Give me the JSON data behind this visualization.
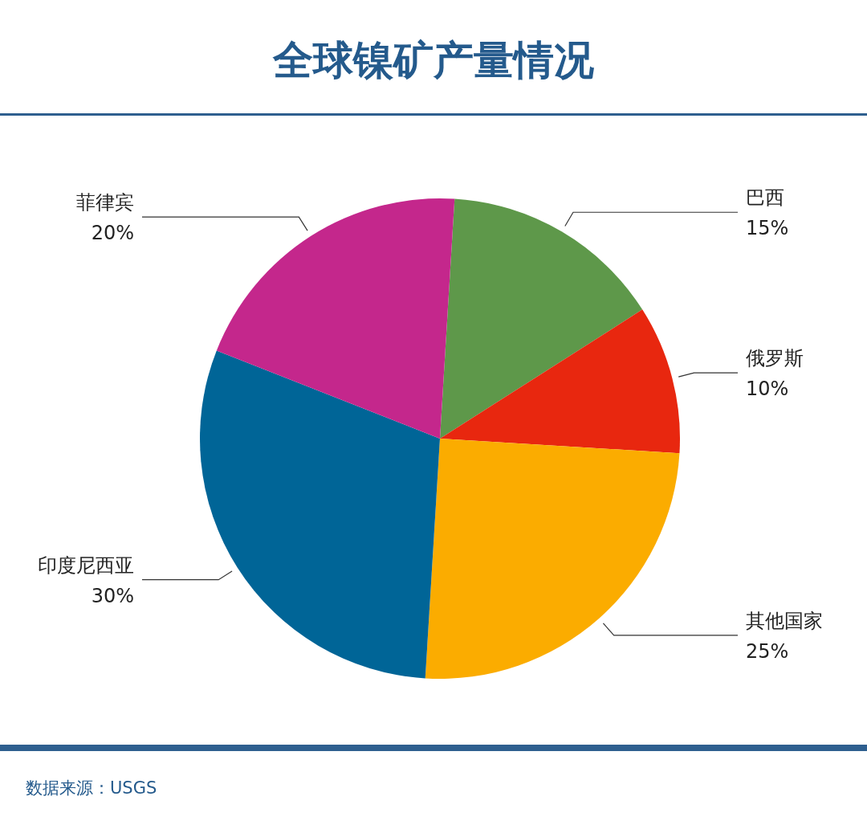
{
  "chart_data": {
    "type": "pie",
    "title": "全球镍矿产量情况",
    "categories": [
      "巴西",
      "俄罗斯",
      "其他国家",
      "印度尼西亚",
      "菲律宾"
    ],
    "values": [
      15,
      10,
      25,
      30,
      20
    ],
    "value_labels": [
      "15%",
      "10%",
      "25%",
      "30%",
      "20%"
    ],
    "colors": [
      "#5e984a",
      "#e8270f",
      "#fbac00",
      "#006597",
      "#c4278c"
    ],
    "annotations": [
      "数据来源：USGS"
    ]
  }
}
